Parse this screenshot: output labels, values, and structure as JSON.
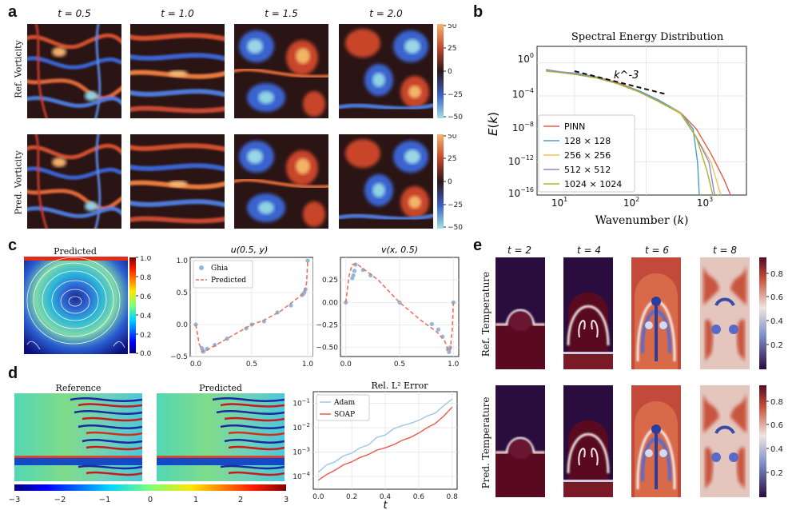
{
  "panel_letters": {
    "a": "a",
    "b": "b",
    "c": "c",
    "d": "d",
    "e": "e"
  },
  "panel_a": {
    "time_labels": [
      "t = 0.5",
      "t = 1.0",
      "t = 1.5",
      "t = 2.0"
    ],
    "row_labels": [
      "Ref. Vorticity",
      "Pred. Vorticity"
    ],
    "colorbar_ticks": [
      "50",
      "25",
      "0",
      "−25",
      "−50"
    ]
  },
  "panel_c": {
    "heatmap_title": "Predicted",
    "heatmap_ticks": [
      "1.0",
      "0.8",
      "0.6",
      "0.4",
      "0.2",
      "0.0"
    ]
  },
  "panel_d": {
    "titles": [
      "Reference",
      "Predicted"
    ],
    "colorbar_ticks": [
      "−3",
      "−2",
      "−1",
      "0",
      "1",
      "2",
      "3"
    ]
  },
  "panel_e": {
    "time_labels": [
      "t = 2",
      "t = 4",
      "t = 6",
      "t = 8"
    ],
    "row_labels": [
      "Ref. Temperature",
      "Pred. Temperature"
    ],
    "colorbar_ticks": [
      "0.8",
      "0.6",
      "0.4",
      "0.2"
    ]
  },
  "chart_data": [
    {
      "id": "spectrum",
      "type": "line",
      "title": "Spectral Energy Distribution",
      "xlabel": "Wavenumber (k)",
      "ylabel": "E(k)",
      "xscale": "log",
      "yscale": "log",
      "xlim": [
        3,
        2500
      ],
      "ylim": [
        1e-16,
        100.0
      ],
      "x_ticks": [
        "10^1",
        "10^2",
        "10^3"
      ],
      "y_ticks": [
        "10^0",
        "10^-4",
        "10^-8",
        "10^-12",
        "10^-16"
      ],
      "annotation": "k^-3",
      "reference_line": {
        "x": [
          10,
          180
        ],
        "y": [
          0.1,
          0.00018
        ]
      },
      "series": [
        {
          "name": "PINN",
          "color": "#e8594a",
          "x": [
            4,
            6,
            10,
            20,
            40,
            80,
            150,
            300,
            500,
            800,
            1200,
            1500
          ],
          "y": [
            0.15,
            0.08,
            0.05,
            0.02,
            0.004,
            0.0004,
            3e-05,
            1e-06,
            1e-08,
            1e-11,
            1e-14,
            1e-16
          ]
        },
        {
          "name": "128 × 128",
          "color": "#4f9cc6",
          "x": [
            4,
            6,
            10,
            20,
            40,
            80,
            150,
            300,
            450,
            520,
            550
          ],
          "y": [
            0.15,
            0.08,
            0.06,
            0.02,
            0.003,
            0.0004,
            3e-05,
            1e-06,
            1e-08,
            1e-12,
            1e-16
          ]
        },
        {
          "name": "256 × 256",
          "color": "#f0c45a",
          "x": [
            4,
            6,
            10,
            20,
            40,
            80,
            150,
            300,
            500,
            800,
            1100
          ],
          "y": [
            0.12,
            0.07,
            0.05,
            0.015,
            0.003,
            0.0003,
            2e-05,
            1e-06,
            1e-09,
            1e-12,
            1e-16
          ]
        },
        {
          "name": "512 × 512",
          "color": "#8a88d6",
          "x": [
            4,
            6,
            10,
            20,
            40,
            80,
            150,
            300,
            500,
            750,
            900
          ],
          "y": [
            0.15,
            0.09,
            0.05,
            0.02,
            0.003,
            0.0003,
            2e-05,
            8e-07,
            1e-09,
            1e-12,
            1e-16
          ]
        },
        {
          "name": "1024 × 1024",
          "color": "#aab52b",
          "x": [
            4,
            6,
            10,
            20,
            40,
            80,
            150,
            300,
            500,
            700,
            850
          ],
          "y": [
            0.1,
            0.07,
            0.04,
            0.015,
            0.003,
            0.0003,
            2e-05,
            8e-07,
            1e-09,
            1e-13,
            1e-16
          ]
        }
      ]
    },
    {
      "id": "u_profile",
      "type": "line",
      "title": "u(0.5, y)",
      "xlim": [
        -0.05,
        1.05
      ],
      "ylim": [
        -0.5,
        1.05
      ],
      "x_ticks": [
        "0.0",
        "0.5",
        "1.0"
      ],
      "y_ticks": [
        "1.0",
        "0.5",
        "0.0",
        "−0.5"
      ],
      "series": [
        {
          "name": "Ghia",
          "kind": "scatter",
          "color": "#8fb8e0",
          "x": [
            0,
            0.055,
            0.063,
            0.07,
            0.1,
            0.17,
            0.28,
            0.45,
            0.5,
            0.61,
            0.73,
            0.85,
            0.95,
            0.96,
            0.97,
            0.98,
            1.0
          ],
          "y": [
            0,
            -0.37,
            -0.42,
            -0.42,
            -0.38,
            -0.32,
            -0.22,
            -0.06,
            0,
            0.05,
            0.19,
            0.3,
            0.46,
            0.48,
            0.5,
            0.55,
            1.0
          ]
        },
        {
          "name": "Predicted",
          "kind": "line",
          "color": "#e8735e",
          "x": [
            0,
            0.03,
            0.06,
            0.1,
            0.2,
            0.3,
            0.45,
            0.5,
            0.6,
            0.75,
            0.9,
            0.95,
            0.97,
            0.99,
            1.0
          ],
          "y": [
            0,
            -0.3,
            -0.42,
            -0.4,
            -0.3,
            -0.2,
            -0.05,
            0,
            0.06,
            0.2,
            0.4,
            0.47,
            0.5,
            0.65,
            1.0
          ]
        }
      ]
    },
    {
      "id": "v_profile",
      "type": "line",
      "title": "v(x, 0.5)",
      "xlim": [
        -0.05,
        1.05
      ],
      "ylim": [
        -0.6,
        0.5
      ],
      "x_ticks": [
        "0.0",
        "0.5",
        "1.0"
      ],
      "y_ticks": [
        "0.25",
        "0.00",
        "−0.25",
        "−0.50"
      ],
      "series": [
        {
          "name": "Ghia",
          "kind": "scatter",
          "color": "#8fb8e0",
          "x": [
            0,
            0.06,
            0.07,
            0.08,
            0.09,
            0.16,
            0.23,
            0.5,
            0.8,
            0.86,
            0.9,
            0.95,
            0.96,
            0.97,
            1.0
          ],
          "y": [
            0,
            0.27,
            0.3,
            0.35,
            0.42,
            0.36,
            0.3,
            0,
            -0.24,
            -0.3,
            -0.38,
            -0.52,
            -0.55,
            -0.5,
            0
          ]
        },
        {
          "name": "Predicted",
          "kind": "line",
          "color": "#e8735e",
          "x": [
            0,
            0.03,
            0.06,
            0.1,
            0.2,
            0.3,
            0.5,
            0.7,
            0.85,
            0.92,
            0.95,
            0.97,
            0.99,
            1.0
          ],
          "y": [
            0,
            0.3,
            0.42,
            0.43,
            0.34,
            0.25,
            0,
            -0.2,
            -0.33,
            -0.43,
            -0.52,
            -0.54,
            -0.3,
            0
          ]
        }
      ]
    },
    {
      "id": "rel_l2",
      "type": "line",
      "title": "Rel. L² Error",
      "xlabel": "t",
      "yscale": "log",
      "xlim": [
        -0.03,
        0.83
      ],
      "ylim": [
        3e-05,
        0.3
      ],
      "x_ticks": [
        "0.0",
        "0.2",
        "0.4",
        "0.6",
        "0.8"
      ],
      "y_ticks": [
        "10^-1",
        "10^-2",
        "10^-3",
        "10^-4"
      ],
      "series": [
        {
          "name": "Adam",
          "color": "#9cc7e3",
          "x": [
            0,
            0.05,
            0.1,
            0.15,
            0.2,
            0.25,
            0.3,
            0.35,
            0.4,
            0.45,
            0.5,
            0.55,
            0.6,
            0.65,
            0.7,
            0.75,
            0.8
          ],
          "y": [
            0.00015,
            0.0003,
            0.0004,
            0.0007,
            0.0009,
            0.0015,
            0.002,
            0.004,
            0.005,
            0.009,
            0.012,
            0.015,
            0.02,
            0.03,
            0.04,
            0.08,
            0.15
          ]
        },
        {
          "name": "SOAP",
          "color": "#e8594a",
          "x": [
            0,
            0.05,
            0.1,
            0.15,
            0.2,
            0.25,
            0.3,
            0.35,
            0.4,
            0.45,
            0.5,
            0.55,
            0.6,
            0.65,
            0.7,
            0.75,
            0.8
          ],
          "y": [
            7e-05,
            0.00012,
            0.00018,
            0.0003,
            0.0004,
            0.0006,
            0.0008,
            0.0012,
            0.0015,
            0.002,
            0.003,
            0.004,
            0.006,
            0.01,
            0.015,
            0.03,
            0.07
          ]
        }
      ]
    }
  ]
}
